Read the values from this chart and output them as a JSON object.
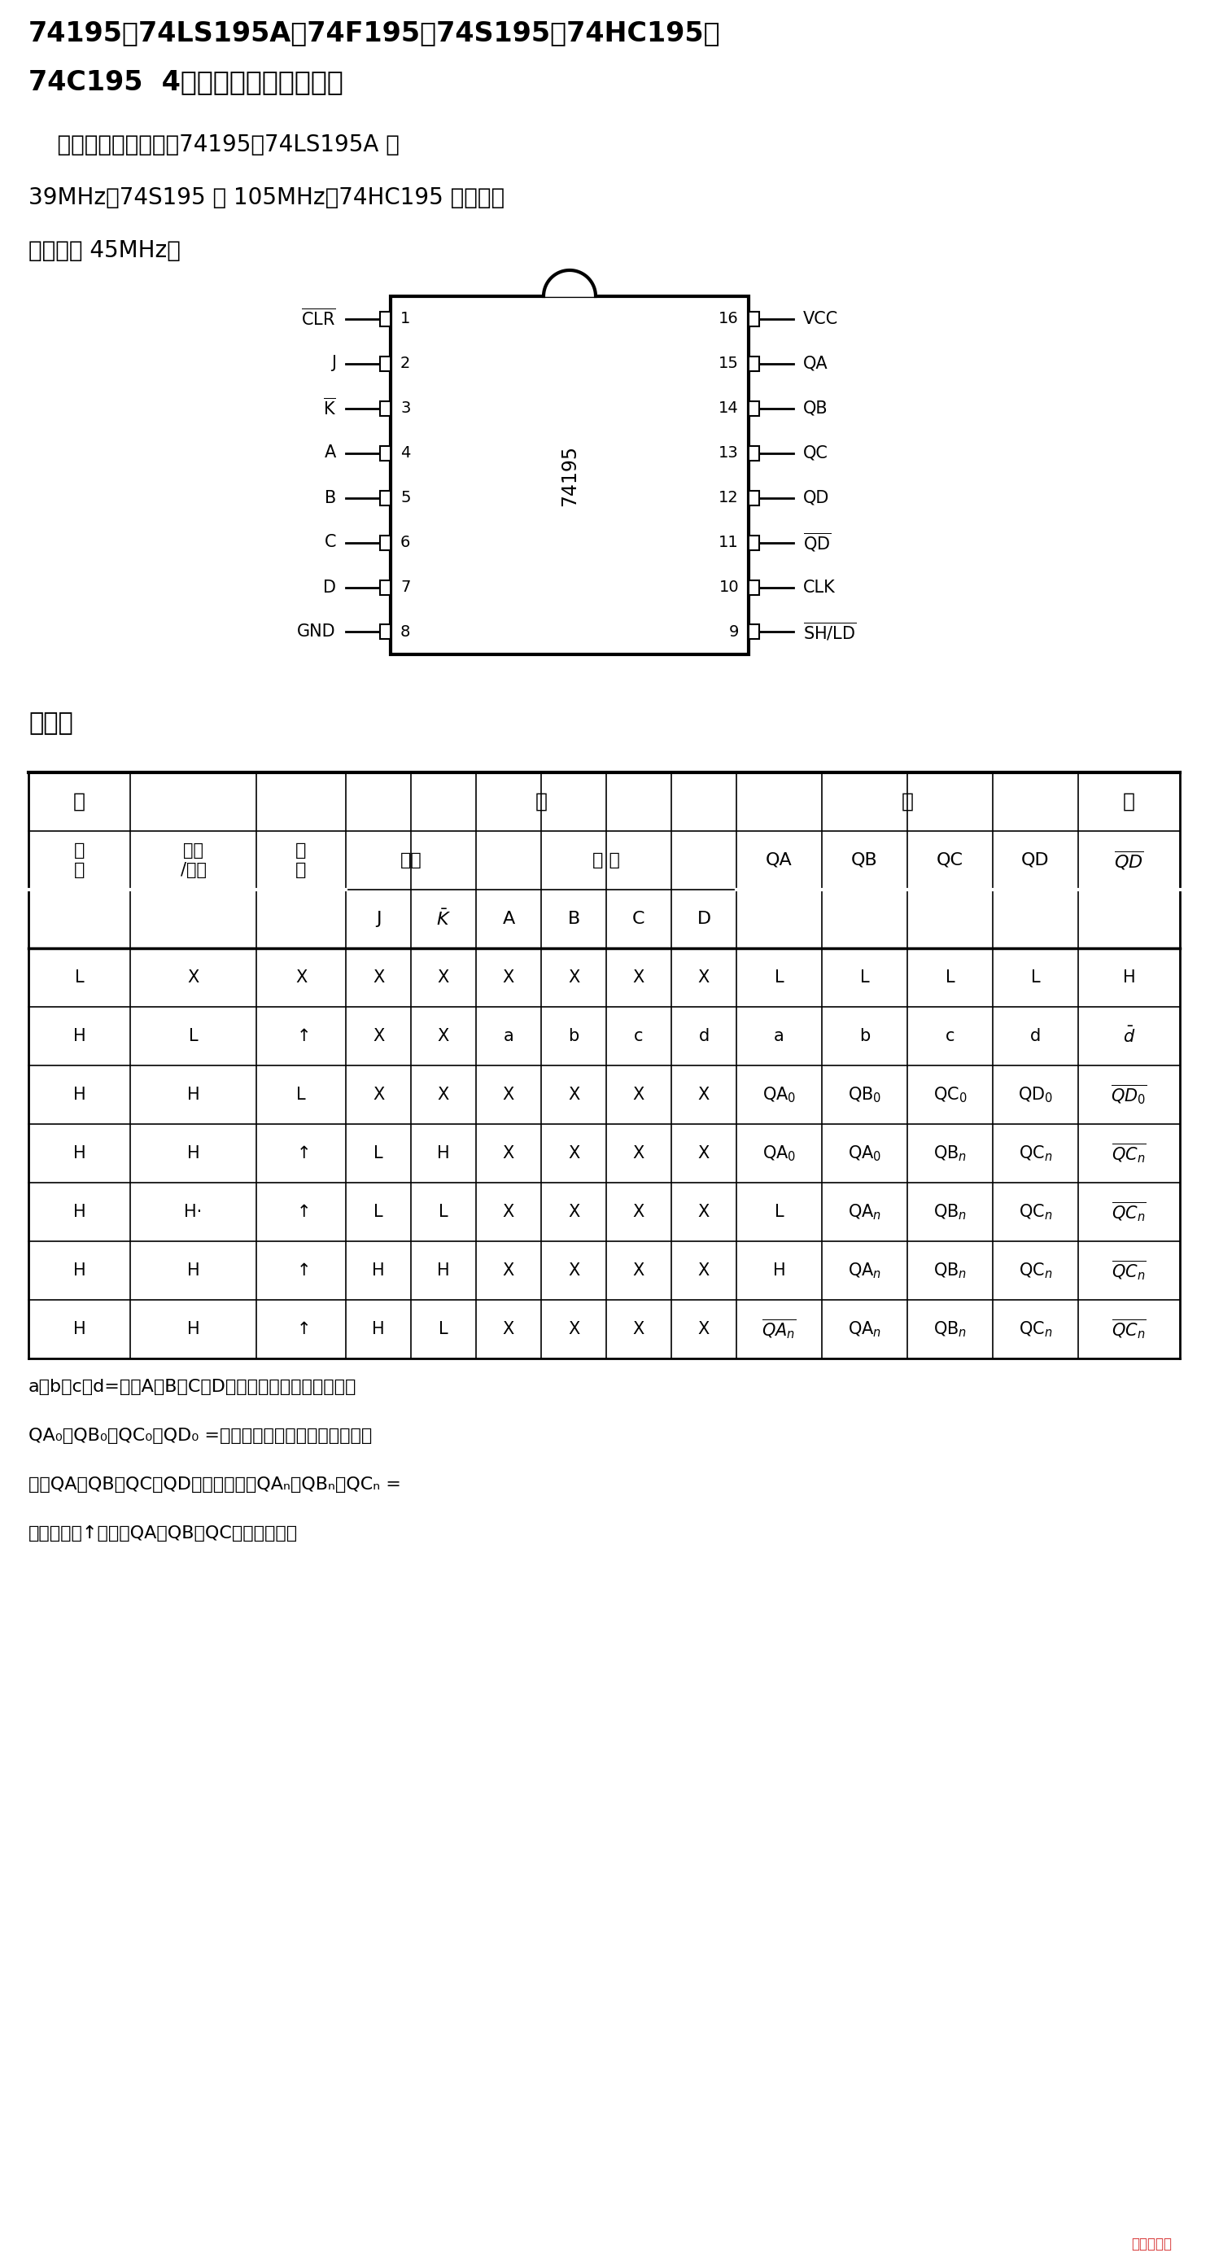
{
  "title_line1": "74195、74LS195A、74F195、74S195、74HC195、",
  "title_line2": "74C195  4位并行存取移位寄存器",
  "desc_line1": "    典型最高时钟频率：74195、74LS195A 为",
  "desc_line2": "39MHz，74S195 为 105MHz，74HC195 的典型工",
  "desc_line3": "作频率为 45MHz。",
  "left_pins": [
    {
      "num": "1",
      "name": "CLR",
      "overline": true
    },
    {
      "num": "2",
      "name": "J",
      "overline": false
    },
    {
      "num": "3",
      "name": "K",
      "overline": true
    },
    {
      "num": "4",
      "name": "A",
      "overline": false
    },
    {
      "num": "5",
      "name": "B",
      "overline": false
    },
    {
      "num": "6",
      "name": "C",
      "overline": false
    },
    {
      "num": "7",
      "name": "D",
      "overline": false
    },
    {
      "num": "8",
      "name": "GND",
      "overline": false
    }
  ],
  "right_pins": [
    {
      "num": "16",
      "name": "VCC",
      "overline": false
    },
    {
      "num": "15",
      "name": "QA",
      "overline": false
    },
    {
      "num": "14",
      "name": "QB",
      "overline": false
    },
    {
      "num": "13",
      "name": "QC",
      "overline": false
    },
    {
      "num": "12",
      "name": "QD",
      "overline": false
    },
    {
      "num": "11",
      "name": "QD",
      "overline": true
    },
    {
      "num": "10",
      "name": "CLK",
      "overline": false
    },
    {
      "num": "9",
      "name": "SH/LD",
      "overline": true
    }
  ],
  "chip_label": "74195",
  "table_title": "功能表",
  "footnote_lines": [
    "a、b、c、d=输入A、B、C或D端相应的稳定态输入电平。",
    "QA₀、QB₀、QC₀、QD₀ =在规定的稳定态输入条件建立之",
    "前，QA、QB、QC或QD相应的电平。QAₙ、QBₙ、QCₙ =",
    "最近的时钟↑跳变前QA、QB、QC相应的电平。"
  ],
  "bg_color": "#ffffff",
  "text_color": "#000000"
}
